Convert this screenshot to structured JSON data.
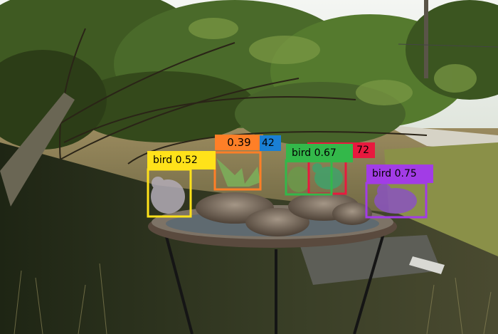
{
  "detections": [
    {
      "label_text": "bird 0.52",
      "color": "#ffe21a",
      "text_color": "#000000"
    },
    {
      "label_text": "0.39",
      "color": "#ff7f27",
      "text_color": "#000000"
    },
    {
      "label_text": "42",
      "color": "#1a7fd4",
      "text_color": "#000000"
    },
    {
      "label_text": "72",
      "color": "#e8193e",
      "text_color": "#000000"
    },
    {
      "label_text": "bird 0.67",
      "color": "#33b84a",
      "text_color": "#000000"
    },
    {
      "label_text": "bird 0.75",
      "color": "#a23ce6",
      "text_color": "#000000"
    }
  ]
}
